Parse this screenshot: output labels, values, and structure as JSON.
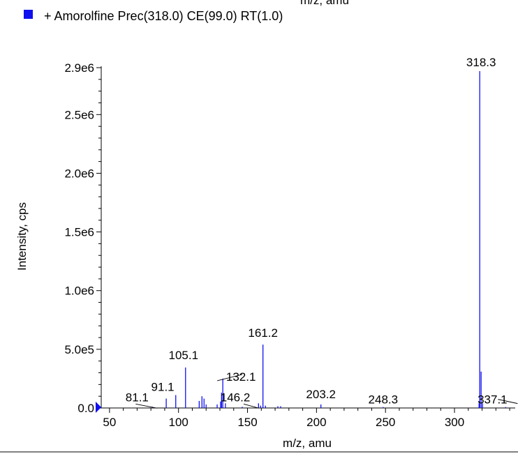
{
  "clipped_top_text": "m/z, amu",
  "legend": {
    "color": "#1010ee",
    "label": "+ Amorolfine Prec(318.0) CE(99.0) RT(1.0)"
  },
  "chart_data": {
    "type": "bar",
    "title": "",
    "xlabel": "m/z, amu",
    "ylabel": "Intensity, cps",
    "xlim": [
      44,
      344
    ],
    "ylim": [
      0,
      2900000
    ],
    "xticks": [
      50,
      100,
      150,
      200,
      250,
      300
    ],
    "xtick_labels": [
      "50",
      "100",
      "150",
      "200",
      "250",
      "300"
    ],
    "yticks": [
      0,
      500000,
      1000000,
      1500000,
      2000000,
      2500000,
      2900000
    ],
    "ytick_labels": [
      "0.0",
      "5.0e5",
      "1.0e6",
      "1.5e6",
      "2.0e6",
      "2.5e6",
      "2.9e6"
    ],
    "series_color": "#1010ee",
    "peaks": [
      {
        "x": 81.1,
        "y": 10000
      },
      {
        "x": 91.1,
        "y": 80000
      },
      {
        "x": 98.0,
        "y": 110000
      },
      {
        "x": 105.1,
        "y": 345000
      },
      {
        "x": 115.0,
        "y": 60000
      },
      {
        "x": 117.0,
        "y": 100000
      },
      {
        "x": 118.5,
        "y": 80000
      },
      {
        "x": 120.0,
        "y": 30000
      },
      {
        "x": 128.0,
        "y": 30000
      },
      {
        "x": 130.5,
        "y": 55000
      },
      {
        "x": 131.2,
        "y": 130000
      },
      {
        "x": 132.1,
        "y": 250000
      },
      {
        "x": 134.0,
        "y": 40000
      },
      {
        "x": 146.2,
        "y": 10000
      },
      {
        "x": 158.0,
        "y": 40000
      },
      {
        "x": 159.5,
        "y": 20000
      },
      {
        "x": 161.2,
        "y": 540000
      },
      {
        "x": 163.0,
        "y": 20000
      },
      {
        "x": 172.0,
        "y": 15000
      },
      {
        "x": 174.0,
        "y": 15000
      },
      {
        "x": 203.2,
        "y": 30000
      },
      {
        "x": 248.3,
        "y": 8000
      },
      {
        "x": 317.8,
        "y": 40000
      },
      {
        "x": 318.3,
        "y": 2870000
      },
      {
        "x": 319.3,
        "y": 310000
      },
      {
        "x": 320.3,
        "y": 40000
      },
      {
        "x": 337.1,
        "y": 8000
      }
    ],
    "annotations": [
      {
        "text": "81.1",
        "x": 81.1
      },
      {
        "text": "91.1",
        "x": 91.1
      },
      {
        "text": "105.1",
        "x": 105.1
      },
      {
        "text": "132.1",
        "x": 132.1
      },
      {
        "text": "146.2",
        "x": 146.2
      },
      {
        "text": "161.2",
        "x": 161.2
      },
      {
        "text": "203.2",
        "x": 203.2
      },
      {
        "text": "248.3",
        "x": 248.3
      },
      {
        "text": "318.3",
        "x": 318.3
      },
      {
        "text": "337.1",
        "x": 337.1
      }
    ]
  }
}
